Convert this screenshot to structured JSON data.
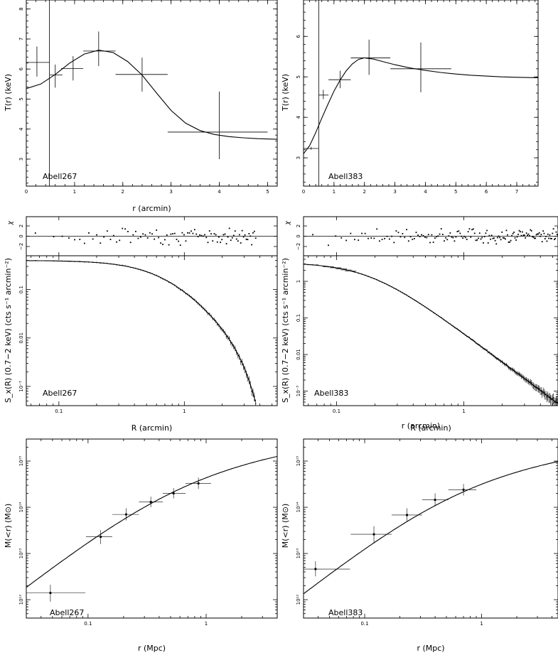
{
  "chart_data": [
    {
      "id": "t_a267",
      "type": "scatter",
      "scale": "linear",
      "cluster_label": "Abell267",
      "xlabel": "r (arcmin)",
      "ylabel": "T(r) (keV)",
      "xlim": [
        0,
        5.2
      ],
      "ylim": [
        2.1,
        8.3
      ],
      "xticks": [
        0,
        1,
        2,
        3,
        4,
        5
      ],
      "yticks": [
        3,
        4,
        5,
        6,
        7,
        8
      ],
      "points": [
        {
          "x": 0.22,
          "y": 6.22,
          "xlo": 0.0,
          "xhi": 0.48,
          "ylo": 5.75,
          "yhi": 6.75
        },
        {
          "x": 0.6,
          "y": 5.8,
          "xlo": 0.48,
          "xhi": 0.75,
          "ylo": 5.38,
          "yhi": 6.15
        },
        {
          "x": 0.97,
          "y": 6.02,
          "xlo": 0.72,
          "xhi": 1.18,
          "ylo": 5.62,
          "yhi": 6.43
        },
        {
          "x": 1.5,
          "y": 6.6,
          "xlo": 1.18,
          "xhi": 1.85,
          "ylo": 6.1,
          "yhi": 7.25
        },
        {
          "x": 2.4,
          "y": 5.82,
          "xlo": 1.85,
          "xhi": 2.93,
          "ylo": 5.25,
          "yhi": 6.38
        },
        {
          "x": 4.0,
          "y": 3.9,
          "xlo": 2.93,
          "xhi": 5.0,
          "ylo": 3.0,
          "yhi": 5.25
        }
      ],
      "vline": {
        "x": 0.48,
        "y0": 2.1,
        "y1": 8.3
      },
      "model": {
        "x": [
          0,
          0.3,
          0.6,
          0.9,
          1.2,
          1.5,
          1.8,
          2.1,
          2.4,
          2.7,
          3.0,
          3.3,
          3.6,
          3.9,
          4.2,
          4.5,
          4.8,
          5.2
        ],
        "y": [
          5.35,
          5.5,
          5.82,
          6.2,
          6.5,
          6.63,
          6.55,
          6.25,
          5.8,
          5.2,
          4.62,
          4.2,
          3.95,
          3.82,
          3.75,
          3.71,
          3.68,
          3.66
        ]
      }
    },
    {
      "id": "t_a383",
      "type": "scatter",
      "scale": "linear",
      "cluster_label": "Abell383",
      "xlabel": "r (arcmin)",
      "ylabel": "T(r) (keV)",
      "xlim": [
        0,
        7.7
      ],
      "ylim": [
        2.3,
        6.9
      ],
      "xticks": [
        0,
        1,
        2,
        3,
        4,
        5,
        6,
        7
      ],
      "yticks": [
        3,
        4,
        5,
        6
      ],
      "points": [
        {
          "x": 0.25,
          "y": 3.23,
          "xlo": 0.0,
          "xhi": 0.5,
          "ylo": 3.2,
          "yhi": 3.27
        },
        {
          "x": 0.65,
          "y": 4.55,
          "xlo": 0.5,
          "xhi": 0.82,
          "ylo": 4.45,
          "yhi": 4.68
        },
        {
          "x": 1.2,
          "y": 4.93,
          "xlo": 0.82,
          "xhi": 1.55,
          "ylo": 4.72,
          "yhi": 5.15
        },
        {
          "x": 2.15,
          "y": 5.47,
          "xlo": 1.55,
          "xhi": 2.85,
          "ylo": 5.05,
          "yhi": 5.92
        },
        {
          "x": 3.85,
          "y": 5.2,
          "xlo": 2.85,
          "xhi": 4.85,
          "ylo": 4.62,
          "yhi": 5.85
        }
      ],
      "vline": {
        "x": 0.5,
        "y0": 2.3,
        "y1": 6.9
      },
      "model": {
        "x": [
          0,
          0.2,
          0.4,
          0.6,
          0.8,
          1.0,
          1.2,
          1.4,
          1.6,
          1.8,
          2.0,
          2.3,
          2.6,
          3.0,
          3.5,
          4.0,
          4.5,
          5.0,
          5.5,
          6.0,
          6.5,
          7.0,
          7.7
        ],
        "y": [
          3.1,
          3.3,
          3.62,
          3.98,
          4.32,
          4.65,
          4.92,
          5.15,
          5.32,
          5.43,
          5.47,
          5.44,
          5.38,
          5.3,
          5.22,
          5.16,
          5.11,
          5.07,
          5.04,
          5.02,
          5.0,
          4.99,
          4.98
        ]
      }
    },
    {
      "id": "sx_a267",
      "type": "scatter",
      "scale": "log",
      "cluster_label": "Abell267",
      "xlabel": "R (arcmin)",
      "ylabel": "S_x(R) (0.7−2 keV) (cts s⁻¹ arcmin⁻²)",
      "xlim": [
        0.055,
        5.5
      ],
      "ylim": [
        0.0004,
        0.5
      ],
      "xticks": [
        0.1,
        1
      ],
      "xticklabels": [
        "0.1",
        "1"
      ],
      "yticks": [
        0.001,
        0.01,
        0.1
      ],
      "yticklabels": [
        "10⁻³",
        "0.01",
        "0.1"
      ],
      "rc": 0.75,
      "beta": 0.65,
      "norm": 0.4,
      "trunc": 3.0,
      "trunc_pow": 3.5,
      "x_start": 0.065,
      "n_points": 110,
      "ymin_plot": 0.00045,
      "resid": {
        "ylabel": "χ",
        "ylim": [
          -3.8,
          3.8
        ],
        "yticks": [
          2,
          0,
          -2
        ],
        "yticklabels": [
          "2",
          "0",
          "−2"
        ]
      }
    },
    {
      "id": "sx_a383",
      "type": "scatter",
      "scale": "log",
      "cluster_label": "Abell383",
      "xlabel": "R (arcmin)",
      "ylabel": "S_x(R) (0.7−2 keV) (cts s⁻¹ arcmin⁻²)",
      "xlim": [
        0.055,
        5.5
      ],
      "ylim": [
        0.0004,
        5.0
      ],
      "xticks": [
        0.1,
        1
      ],
      "xticklabels": [
        "0.1",
        "1"
      ],
      "yticks": [
        0.001,
        0.01,
        0.1,
        1
      ],
      "yticklabels": [
        "10⁻³",
        "0.01",
        "0.1",
        "1"
      ],
      "rc": 0.18,
      "beta": 0.6,
      "norm": 3.3,
      "trunc": 0,
      "trunc_pow": 0,
      "x_start": 0.065,
      "n_points": 150,
      "ymin_plot": 0.00045,
      "resid": {
        "ylabel": "χ",
        "ylim": [
          -3.8,
          3.8
        ],
        "yticks": [
          2,
          0,
          -2
        ],
        "yticklabels": [
          "2",
          "0",
          "−2"
        ]
      }
    },
    {
      "id": "m_a267",
      "type": "scatter",
      "scale": "log",
      "cluster_label": "Abell267",
      "xlabel": "r (Mpc)",
      "ylabel": "M(<r) (M⊙)",
      "xlim": [
        0.03,
        4.0
      ],
      "ylim": [
        400000000000.0,
        3000000000000000.0
      ],
      "xticks": [
        0.1,
        1
      ],
      "xticklabels": [
        "0.1",
        "1"
      ],
      "yticks": [
        1000000000000.0,
        10000000000000.0,
        100000000000000.0,
        1000000000000000.0
      ],
      "yticklabels": [
        "10¹²",
        "10¹³",
        "10¹⁴",
        "10¹⁵"
      ],
      "points": [
        {
          "x": 0.048,
          "y": 1400000000000.0,
          "xlo": 0.03,
          "xhi": 0.095,
          "ylo": 900000000000.0,
          "yhi": 2100000000000.0
        },
        {
          "x": 0.128,
          "y": 23000000000000.0,
          "xlo": 0.096,
          "xhi": 0.16,
          "ylo": 16000000000000.0,
          "yhi": 32000000000000.0
        },
        {
          "x": 0.21,
          "y": 70000000000000.0,
          "xlo": 0.16,
          "xhi": 0.27,
          "ylo": 52000000000000.0,
          "yhi": 95000000000000.0
        },
        {
          "x": 0.34,
          "y": 130000000000000.0,
          "xlo": 0.27,
          "xhi": 0.43,
          "ylo": 100000000000000.0,
          "yhi": 170000000000000.0
        },
        {
          "x": 0.53,
          "y": 200000000000000.0,
          "xlo": 0.43,
          "xhi": 0.67,
          "ylo": 155000000000000.0,
          "yhi": 260000000000000.0
        },
        {
          "x": 0.86,
          "y": 330000000000000.0,
          "xlo": 0.67,
          "xhi": 1.1,
          "ylo": 250000000000000.0,
          "yhi": 440000000000000.0
        }
      ],
      "model": {
        "Mc": 200000000000000.0,
        "rs": 0.45
      }
    },
    {
      "id": "m_a383",
      "type": "scatter",
      "scale": "log",
      "cluster_label": "Abell383",
      "xlabel": "r (Mpc)",
      "ylabel": "M(<r) (M⊙)",
      "xlim": [
        0.03,
        4.5
      ],
      "ylim": [
        400000000000.0,
        3000000000000000.0
      ],
      "xticks": [
        0.1,
        1
      ],
      "xticklabels": [
        "0.1",
        "1"
      ],
      "yticks": [
        1000000000000.0,
        10000000000000.0,
        100000000000000.0,
        1000000000000000.0
      ],
      "yticklabels": [
        "10¹²",
        "10¹³",
        "10¹⁴",
        "10¹⁵"
      ],
      "points": [
        {
          "x": 0.038,
          "y": 4600000000000.0,
          "xlo": 0.03,
          "xhi": 0.075,
          "ylo": 3200000000000.0,
          "yhi": 6800000000000.0
        },
        {
          "x": 0.12,
          "y": 26000000000000.0,
          "xlo": 0.076,
          "xhi": 0.17,
          "ylo": 17500000000000.0,
          "yhi": 39000000000000.0
        },
        {
          "x": 0.23,
          "y": 68000000000000.0,
          "xlo": 0.17,
          "xhi": 0.31,
          "ylo": 50000000000000.0,
          "yhi": 95000000000000.0
        },
        {
          "x": 0.4,
          "y": 145000000000000.0,
          "xlo": 0.31,
          "xhi": 0.52,
          "ylo": 105000000000000.0,
          "yhi": 200000000000000.0
        },
        {
          "x": 0.7,
          "y": 240000000000000.0,
          "xlo": 0.52,
          "xhi": 0.9,
          "ylo": 180000000000000.0,
          "yhi": 320000000000000.0
        }
      ],
      "model": {
        "Mc": 145000000000000.0,
        "rs": 0.45
      }
    }
  ]
}
